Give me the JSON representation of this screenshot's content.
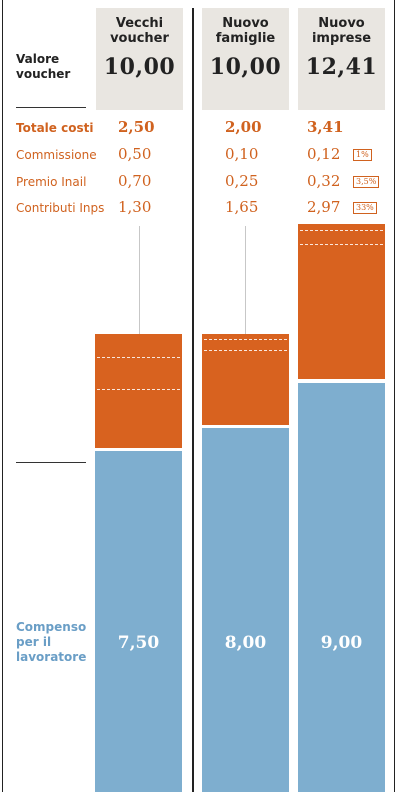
{
  "header": {
    "valore_label": "Valore\nvoucher"
  },
  "rows": {
    "totale": "Totale costi",
    "commissione": "Commissione",
    "inail": "Premio Inail",
    "inps": "Contributi Inps"
  },
  "columns": [
    {
      "title": "Vecchi\nvoucher",
      "valore": "10,00",
      "totale": "2,50",
      "commissione": "0,50",
      "inail": "0,70",
      "inps": "1,30",
      "compenso": "7,50"
    },
    {
      "title": "Nuovo\nfamiglie",
      "valore": "10,00",
      "totale": "2,00",
      "commissione": "0,10",
      "inail": "0,25",
      "inps": "1,65",
      "compenso": "8,00"
    },
    {
      "title": "Nuovo\nimprese",
      "valore": "12,41",
      "totale": "3,41",
      "commissione": "0,12",
      "inail": "0,32",
      "inps": "2,97",
      "compenso": "9,00",
      "pct_commissione": "1%",
      "pct_inail": "3,5%",
      "pct_inps": "33%"
    }
  ],
  "compenso_label": "Compenso\nper il\nlavoratore",
  "colors": {
    "costs": "#d8621f",
    "worker": "#7eaecf",
    "header_bg": "#e9e6e1",
    "text_orange": "#d0621f"
  },
  "chart_data": {
    "type": "bar",
    "stacked": true,
    "categories": [
      "Vecchi voucher",
      "Nuovo famiglie",
      "Nuovo imprese"
    ],
    "series": [
      {
        "name": "Compenso per il lavoratore",
        "values": [
          7.5,
          8.0,
          9.0
        ]
      },
      {
        "name": "Totale costi",
        "values": [
          2.5,
          2.0,
          3.41
        ]
      }
    ],
    "cost_breakdown": {
      "Commissione": [
        0.5,
        0.1,
        0.12
      ],
      "Premio Inail": [
        0.7,
        0.25,
        0.32
      ],
      "Contributi Inps": [
        1.3,
        1.65,
        2.97
      ]
    },
    "totals": [
      10.0,
      10.0,
      12.41
    ],
    "ylim": [
      0,
      12.41
    ]
  }
}
